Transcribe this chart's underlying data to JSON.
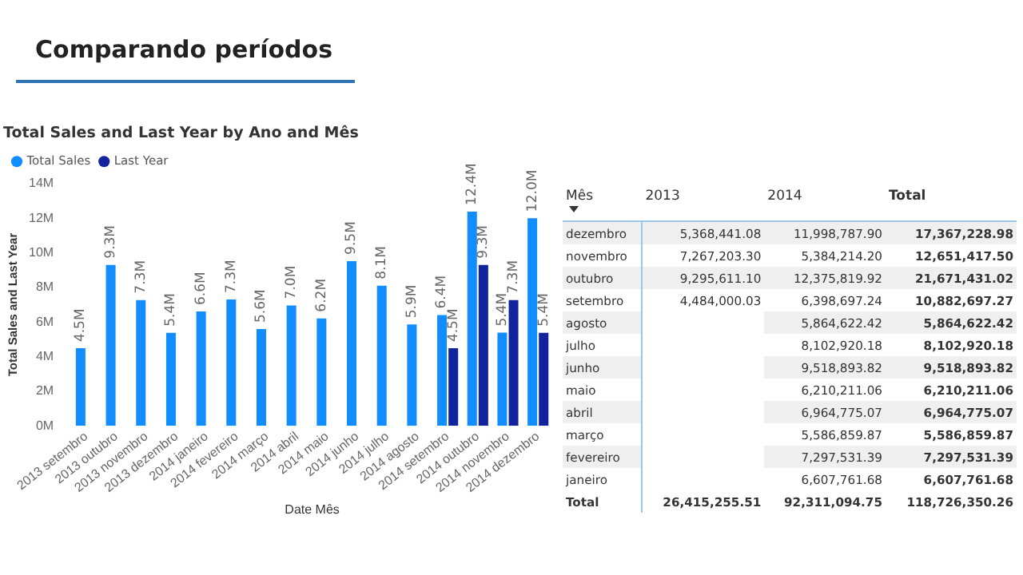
{
  "chart_data": [
    {
      "type": "bar",
      "title": "Total Sales and Last Year by Ano and Mês",
      "xlabel": "Date Mês",
      "ylabel": "Total Sales and Last Year",
      "categories": [
        "2013 setembro",
        "2013 outubro",
        "2013 novembro",
        "2013 dezembro",
        "2014 janeiro",
        "2014 fevereiro",
        "2014 março",
        "2014 abril",
        "2014 maio",
        "2014 junho",
        "2014 julho",
        "2014 agosto",
        "2014 setembro",
        "2014 outubro",
        "2014 novembro",
        "2014 dezembro"
      ],
      "series": [
        {
          "name": "Total Sales",
          "color": "#118dff",
          "values": [
            4.48,
            9.3,
            7.27,
            5.37,
            6.61,
            7.3,
            5.59,
            6.96,
            6.21,
            9.52,
            8.1,
            5.86,
            6.4,
            12.38,
            5.38,
            12.0
          ],
          "value_labels": [
            "4.5M",
            "9.3M",
            "7.3M",
            "5.4M",
            "6.6M",
            "7.3M",
            "5.6M",
            "7.0M",
            "6.2M",
            "9.5M",
            "8.1M",
            "5.9M",
            "6.4M",
            "12.4M",
            "5.4M",
            "12.0M"
          ]
        },
        {
          "name": "Last Year",
          "color": "#12239e",
          "values": [
            null,
            null,
            null,
            null,
            null,
            null,
            null,
            null,
            null,
            null,
            null,
            null,
            4.48,
            9.3,
            7.27,
            5.37
          ],
          "value_labels": [
            null,
            null,
            null,
            null,
            null,
            null,
            null,
            null,
            null,
            null,
            null,
            null,
            "4.5M",
            "9.3M",
            "7.3M",
            "5.4M"
          ]
        }
      ],
      "ylim": [
        0,
        14
      ],
      "yticks": [
        {
          "value": 0,
          "label": "0M"
        },
        {
          "value": 2,
          "label": "2M"
        },
        {
          "value": 4,
          "label": "4M"
        },
        {
          "value": 6,
          "label": "6M"
        },
        {
          "value": 8,
          "label": "8M"
        },
        {
          "value": 10,
          "label": "10M"
        },
        {
          "value": 12,
          "label": "12M"
        },
        {
          "value": 14,
          "label": "14M"
        }
      ],
      "grid": false,
      "legend": "top left",
      "annotations": [
        "Comparando períodos"
      ]
    },
    {
      "type": "other",
      "categories": [
        "Mês",
        "2013",
        "2014",
        "Total"
      ],
      "y_categories": [
        "dezembro",
        "novembro",
        "outubro",
        "setembro",
        "agosto",
        "julho",
        "junho",
        "maio",
        "abril",
        "março",
        "fevereiro",
        "janeiro",
        "Total"
      ],
      "cell_labels": [
        [
          "5,368,441.08",
          "11,998,787.90",
          "17,367,228.98"
        ],
        [
          "7,267,203.30",
          "5,384,214.20",
          "12,651,417.50"
        ],
        [
          "9,295,611.10",
          "12,375,819.92",
          "21,671,431.02"
        ],
        [
          "4,484,000.03",
          "6,398,697.24",
          "10,882,697.27"
        ],
        [
          null,
          "5,864,622.42",
          "5,864,622.42"
        ],
        [
          null,
          "8,102,920.18",
          "8,102,920.18"
        ],
        [
          null,
          "9,518,893.82",
          "9,518,893.82"
        ],
        [
          null,
          "6,210,211.06",
          "6,210,211.06"
        ],
        [
          null,
          "6,964,775.07",
          "6,964,775.07"
        ],
        [
          null,
          "5,586,859.87",
          "5,586,859.87"
        ],
        [
          null,
          "7,297,531.39",
          "7,297,531.39"
        ],
        [
          null,
          "6,607,761.68",
          "6,607,761.68"
        ],
        [
          "26,415,255.51",
          "92,311,094.75",
          "118,726,350.26"
        ]
      ]
    }
  ]
}
